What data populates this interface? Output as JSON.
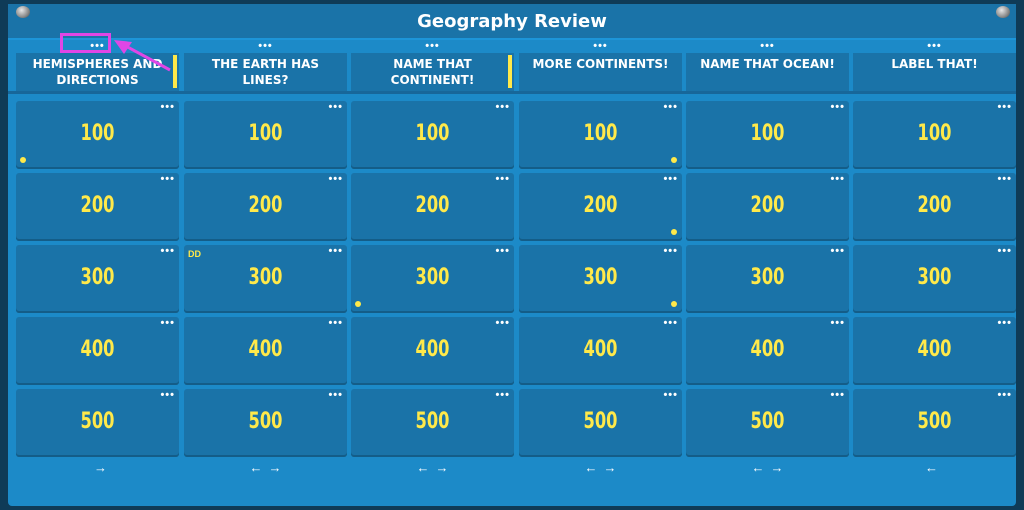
{
  "title": "Geography Review",
  "menu_glyph": "•••",
  "accent_color": "#ffe94a",
  "board_color": "#1c8ac8",
  "tile_color": "#1a73a8",
  "highlight_color": "#e046e6",
  "columns": [
    {
      "title": "HEMISPHERES AND DIRECTIONS",
      "values": [
        "100",
        "200",
        "300",
        "400",
        "500"
      ],
      "arrows": {
        "left": "",
        "right": "→"
      }
    },
    {
      "title": "THE EARTH HAS LINES?",
      "values": [
        "100",
        "200",
        "300",
        "400",
        "500"
      ],
      "arrows": {
        "left": "←",
        "right": "→"
      }
    },
    {
      "title": "NAME THAT CONTINENT!",
      "values": [
        "100",
        "200",
        "300",
        "400",
        "500"
      ],
      "arrows": {
        "left": "←",
        "right": "→"
      }
    },
    {
      "title": "MORE CONTINENTS!",
      "values": [
        "100",
        "200",
        "300",
        "400",
        "500"
      ],
      "arrows": {
        "left": "←",
        "right": "→"
      }
    },
    {
      "title": "NAME THAT OCEAN!",
      "values": [
        "100",
        "200",
        "300",
        "400",
        "500"
      ],
      "arrows": {
        "left": "←",
        "right": "→"
      }
    },
    {
      "title": "LABEL THAT!",
      "values": [
        "100",
        "200",
        "300",
        "400",
        "500"
      ],
      "arrows": {
        "left": "←",
        "right": ""
      }
    }
  ],
  "daily_double_label": "DD"
}
